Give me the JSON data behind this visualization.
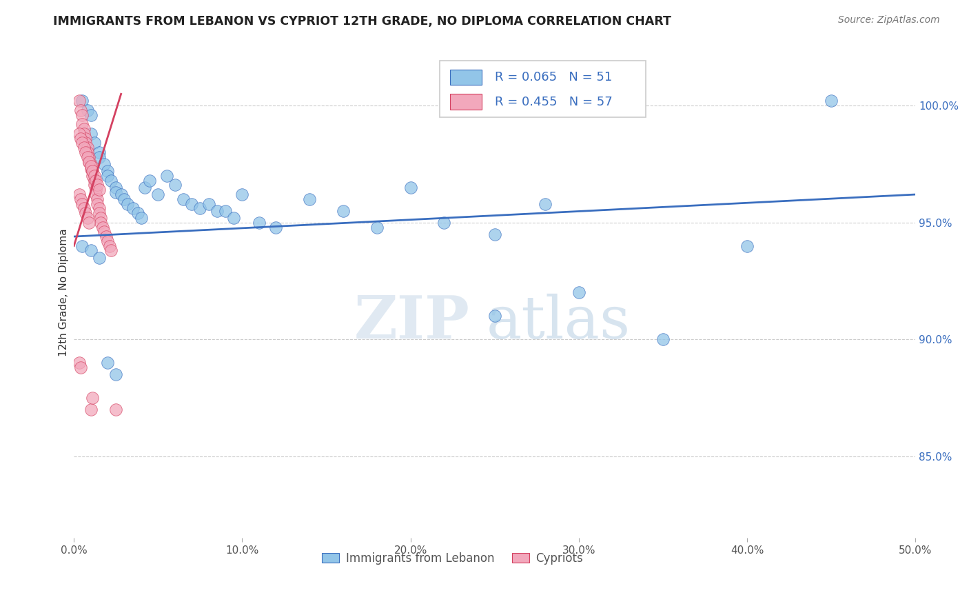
{
  "title": "IMMIGRANTS FROM LEBANON VS CYPRIOT 12TH GRADE, NO DIPLOMA CORRELATION CHART",
  "source": "Source: ZipAtlas.com",
  "ylabel": "12th Grade, No Diploma",
  "x_tick_labels": [
    "0.0%",
    "10.0%",
    "20.0%",
    "30.0%",
    "40.0%",
    "50.0%"
  ],
  "x_tick_values": [
    0.0,
    0.1,
    0.2,
    0.3,
    0.4,
    0.5
  ],
  "y_tick_labels": [
    "100.0%",
    "95.0%",
    "90.0%",
    "85.0%"
  ],
  "y_tick_values": [
    1.0,
    0.95,
    0.9,
    0.85
  ],
  "xlim": [
    0.0,
    0.5
  ],
  "ylim": [
    0.815,
    1.025
  ],
  "legend_blue_label": "Immigrants from Lebanon",
  "legend_pink_label": "Cypriots",
  "R_blue": 0.065,
  "N_blue": 51,
  "R_pink": 0.455,
  "N_pink": 57,
  "blue_color": "#92C5E8",
  "pink_color": "#F2A8BC",
  "blue_line_color": "#3A6EBF",
  "pink_line_color": "#D44060",
  "blue_scatter_x": [
    0.005,
    0.008,
    0.01,
    0.01,
    0.012,
    0.015,
    0.015,
    0.018,
    0.02,
    0.02,
    0.022,
    0.025,
    0.025,
    0.028,
    0.03,
    0.032,
    0.035,
    0.038,
    0.04,
    0.042,
    0.045,
    0.05,
    0.055,
    0.06,
    0.065,
    0.07,
    0.075,
    0.08,
    0.085,
    0.09,
    0.095,
    0.1,
    0.11,
    0.12,
    0.14,
    0.16,
    0.18,
    0.2,
    0.22,
    0.25,
    0.28,
    0.3,
    0.35,
    0.4,
    0.45,
    0.005,
    0.01,
    0.015,
    0.02,
    0.025,
    0.25
  ],
  "blue_scatter_y": [
    1.002,
    0.998,
    0.996,
    0.988,
    0.984,
    0.98,
    0.978,
    0.975,
    0.972,
    0.97,
    0.968,
    0.965,
    0.963,
    0.962,
    0.96,
    0.958,
    0.956,
    0.954,
    0.952,
    0.965,
    0.968,
    0.962,
    0.97,
    0.966,
    0.96,
    0.958,
    0.956,
    0.958,
    0.955,
    0.955,
    0.952,
    0.962,
    0.95,
    0.948,
    0.96,
    0.955,
    0.948,
    0.965,
    0.95,
    0.945,
    0.958,
    0.92,
    0.9,
    0.94,
    1.002,
    0.94,
    0.938,
    0.935,
    0.89,
    0.885,
    0.91
  ],
  "pink_scatter_x": [
    0.003,
    0.004,
    0.005,
    0.005,
    0.006,
    0.006,
    0.007,
    0.007,
    0.008,
    0.008,
    0.009,
    0.009,
    0.01,
    0.01,
    0.011,
    0.011,
    0.012,
    0.012,
    0.013,
    0.013,
    0.014,
    0.014,
    0.015,
    0.015,
    0.016,
    0.016,
    0.017,
    0.018,
    0.019,
    0.02,
    0.021,
    0.022,
    0.003,
    0.004,
    0.005,
    0.006,
    0.007,
    0.008,
    0.009,
    0.01,
    0.011,
    0.012,
    0.013,
    0.014,
    0.015,
    0.003,
    0.004,
    0.005,
    0.006,
    0.007,
    0.008,
    0.009,
    0.01,
    0.011,
    0.003,
    0.004,
    0.025
  ],
  "pink_scatter_y": [
    1.002,
    0.998,
    0.996,
    0.992,
    0.99,
    0.988,
    0.986,
    0.984,
    0.982,
    0.98,
    0.978,
    0.976,
    0.975,
    0.973,
    0.972,
    0.97,
    0.968,
    0.966,
    0.964,
    0.962,
    0.96,
    0.958,
    0.956,
    0.954,
    0.952,
    0.95,
    0.948,
    0.946,
    0.944,
    0.942,
    0.94,
    0.938,
    0.988,
    0.986,
    0.984,
    0.982,
    0.98,
    0.978,
    0.976,
    0.974,
    0.972,
    0.97,
    0.968,
    0.966,
    0.964,
    0.962,
    0.96,
    0.958,
    0.956,
    0.954,
    0.952,
    0.95,
    0.87,
    0.875,
    0.89,
    0.888,
    0.87
  ],
  "watermark_zip": "ZIP",
  "watermark_atlas": "atlas",
  "blue_regline_x": [
    0.0,
    0.5
  ],
  "blue_regline_y": [
    0.944,
    0.962
  ],
  "pink_regline_x": [
    0.0,
    0.028
  ],
  "pink_regline_y": [
    0.94,
    1.005
  ]
}
